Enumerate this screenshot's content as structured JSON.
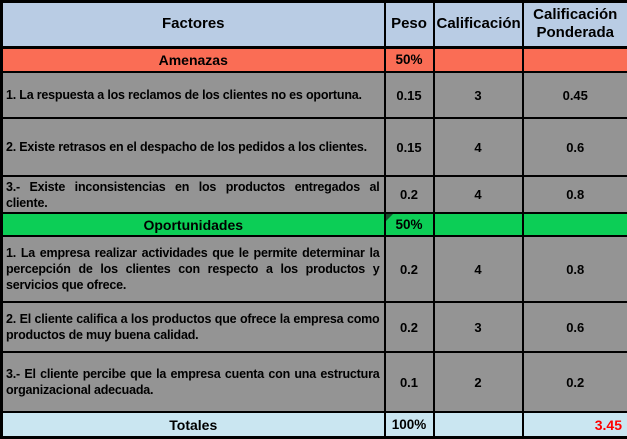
{
  "columns": {
    "factores": "Factores",
    "peso": "Peso",
    "calificacion": "Calificación",
    "calificacion_ponderada": "Calificación Ponderada"
  },
  "rows": [
    {
      "kind": "section",
      "label": "Amenazas",
      "peso": "50%",
      "calificacion": "",
      "ponderada": ""
    },
    {
      "kind": "data",
      "factor": "1. La respuesta a los reclamos de los clientes no es oportuna.",
      "peso": "0.15",
      "calificacion": "3",
      "ponderada": "0.45"
    },
    {
      "kind": "data",
      "factor": "2. Existe retrasos en el despacho de los pedidos a los clientes.",
      "peso": "0.15",
      "calificacion": "4",
      "ponderada": "0.6"
    },
    {
      "kind": "data",
      "factor": "3.- Existe inconsistencias en los productos entregados al cliente.",
      "peso": "0.2",
      "calificacion": "4",
      "ponderada": "0.8"
    },
    {
      "kind": "section",
      "label": "Oportunidades",
      "peso": "50%",
      "calificacion": "",
      "ponderada": ""
    },
    {
      "kind": "data",
      "factor": "1. La empresa realizar actividades que le permite determinar la percepción de los clientes con respecto a los productos y servicios que ofrece.",
      "peso": "0.2",
      "calificacion": "4",
      "ponderada": "0.8"
    },
    {
      "kind": "data",
      "factor": "2. El cliente califica a los productos que ofrece la empresa como productos de muy buena calidad.",
      "peso": "0.2",
      "calificacion": "3",
      "ponderada": "0.6"
    },
    {
      "kind": "data",
      "factor": "3.- El cliente percibe que la empresa cuenta con una estructura organizacional adecuada.",
      "peso": "0.1",
      "calificacion": "2",
      "ponderada": "0.2"
    }
  ],
  "totals": {
    "label": "Totales",
    "peso": "100%",
    "calificacion": "",
    "ponderada": "3.45"
  },
  "colors": {
    "header_blue": "#B9CCE4",
    "threats_red": "#FA6D55",
    "opportunities_green": "#0CCE56",
    "row_gray": "#949494",
    "totals_blue": "#CAE6F1",
    "total_value_red": "#FF0000",
    "indicator_dark_green": "#14532D"
  }
}
